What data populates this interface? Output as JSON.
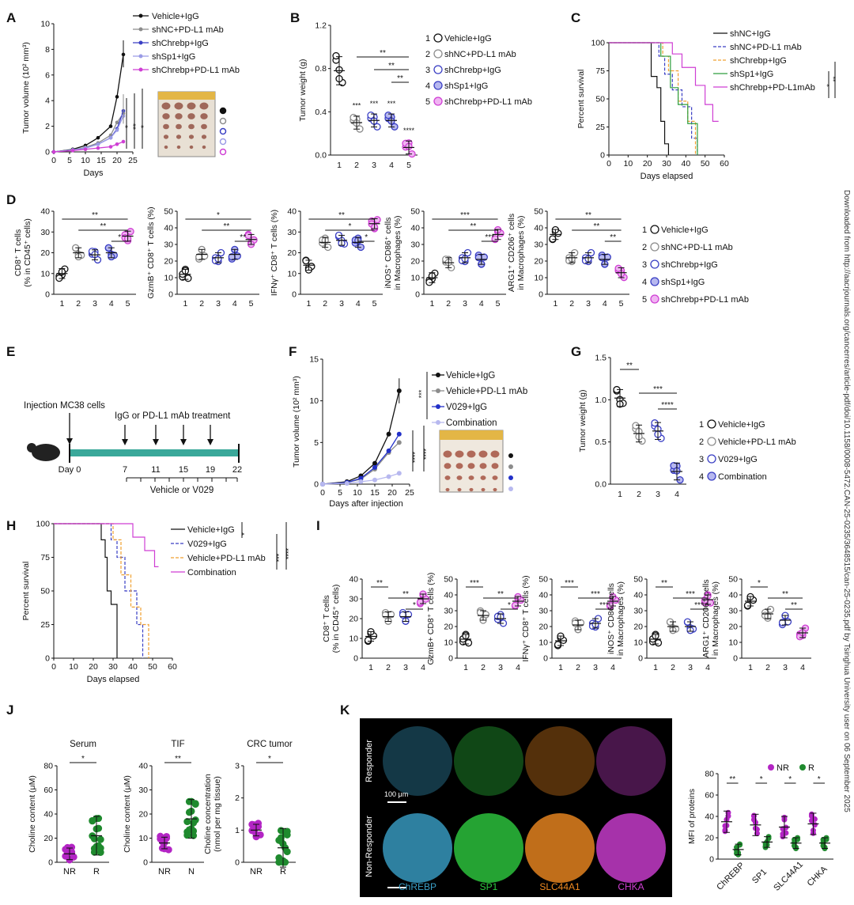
{
  "sidebar_text": "Downloaded from http://aacrjournals.org/cancerres/article-pdf/doi/10.1158/0008-5472.CAN-25-0235/3648515/can-25-0235.pdf by Tsinghua University user on 06 September 2025",
  "labels": {
    "A": "A",
    "B": "B",
    "C": "C",
    "D": "D",
    "E": "E",
    "F": "F",
    "G": "G",
    "H": "H",
    "I": "I",
    "J": "J",
    "K": "K"
  },
  "colors": {
    "black": "#111111",
    "grey": "#8c8c8c",
    "blue": "#3a3fc4",
    "lightblue": "#9a9be6",
    "magenta": "#cf3fd4",
    "orange": "#f0a030",
    "green": "#2e9e3e",
    "teal": "#3aa89a",
    "nr": "#b325c4",
    "r": "#1f8a2e"
  },
  "chart_data": [
    {
      "id": "A",
      "type": "line",
      "xlabel": "Days",
      "ylabel": "Tumor volume (10² mm³)",
      "xticks": [
        0,
        5,
        10,
        15,
        20,
        25
      ],
      "yticks": [
        0,
        2,
        4,
        6,
        8,
        10
      ],
      "ylim": [
        0,
        10
      ],
      "legend": [
        "Vehicle+IgG",
        "shNC+PD-L1 mAb",
        "shChrebp+IgG",
        "shSp1+IgG",
        "shChrebp+PD-L1 mAb"
      ],
      "x": [
        0,
        6,
        10,
        14,
        18,
        20,
        22
      ],
      "series": [
        {
          "name": "Vehicle+IgG",
          "values": [
            0,
            0.2,
            0.5,
            1.1,
            2.0,
            4.3,
            7.6
          ]
        },
        {
          "name": "shNC+PD-L1 mAb",
          "values": [
            0,
            0.15,
            0.35,
            0.7,
            1.3,
            2.3,
            3.0
          ]
        },
        {
          "name": "shChrebp+IgG",
          "values": [
            0,
            0.15,
            0.3,
            0.6,
            1.1,
            1.8,
            3.2
          ]
        },
        {
          "name": "shSp1+IgG",
          "values": [
            0,
            0.15,
            0.3,
            0.6,
            1.1,
            1.7,
            2.8
          ]
        },
        {
          "name": "shChrebp+PD-L1 mAb",
          "values": [
            0,
            0.1,
            0.2,
            0.3,
            0.4,
            0.6,
            0.8
          ]
        }
      ],
      "sig": [
        "*",
        "**",
        "*"
      ]
    },
    {
      "id": "B",
      "type": "scatter",
      "ylabel": "Tumor weight (g)",
      "categories": [
        "1",
        "2",
        "3",
        "4",
        "5"
      ],
      "yticks": [
        0.0,
        0.4,
        0.8,
        1.2
      ],
      "ylim": [
        0,
        1.2
      ],
      "means": [
        0.78,
        0.3,
        0.32,
        0.32,
        0.07
      ],
      "legend": [
        "Vehicle+IgG",
        "shNC+PD-L1 mAb",
        "shChrebp+IgG",
        "shSp1+IgG",
        "shChrebp+PD-L1 mAb"
      ],
      "stars": [
        "",
        "***",
        "***",
        "***",
        "****"
      ],
      "brackets": [
        "**",
        "**",
        "**"
      ]
    },
    {
      "id": "C",
      "type": "line",
      "xlabel": "Days elapsed",
      "ylabel": "Percent survival",
      "xticks": [
        0,
        10,
        20,
        30,
        40,
        50,
        60
      ],
      "yticks": [
        0,
        25,
        50,
        75,
        100
      ],
      "legend": [
        "shNC+IgG",
        "shNC+PD-L1 mAb",
        "shChrebp+IgG",
        "shSp1+IgG",
        "shChrebp+PD-L1mAb"
      ],
      "sig": [
        "*",
        "**",
        "*"
      ]
    },
    {
      "id": "D",
      "type": "scatter",
      "categories": [
        "1",
        "2",
        "3",
        "4",
        "5"
      ],
      "plots": [
        {
          "ylabel": "CD8⁺ T cells (% in CD45⁺ cells)",
          "yticks": [
            0,
            10,
            20,
            30,
            40
          ],
          "ylim": [
            0,
            40
          ],
          "means": [
            10,
            20,
            19,
            20,
            28
          ],
          "brackets": [
            "**",
            "**",
            "*"
          ]
        },
        {
          "ylabel": "GzmB⁺ CD8⁺ T cells (%)",
          "yticks": [
            0,
            10,
            20,
            30,
            40,
            50
          ],
          "ylim": [
            0,
            50
          ],
          "means": [
            12,
            24,
            22,
            24,
            33
          ],
          "brackets": [
            "*",
            "**",
            "**"
          ]
        },
        {
          "ylabel": "IFNγ⁺ CD8⁺ T cells (%)",
          "yticks": [
            0,
            10,
            20,
            30,
            40
          ],
          "ylim": [
            0,
            40
          ],
          "means": [
            14,
            25,
            26,
            25,
            34
          ],
          "brackets": [
            "**",
            "*",
            "*"
          ]
        },
        {
          "ylabel": "iNOS⁺ CD86⁺ cells in Macrophages (%)",
          "yticks": [
            0,
            10,
            20,
            30,
            40,
            50
          ],
          "ylim": [
            0,
            50
          ],
          "means": [
            10,
            19,
            22,
            21,
            36
          ],
          "brackets": [
            "***",
            "**",
            "***"
          ]
        },
        {
          "ylabel": "ARG1⁺ CD206⁺ cells in Macrophages (%)",
          "yticks": [
            0,
            10,
            20,
            30,
            40,
            50
          ],
          "ylim": [
            0,
            50
          ],
          "means": [
            36,
            22,
            22,
            21,
            13
          ],
          "brackets": [
            "**",
            "**",
            "**"
          ]
        }
      ],
      "legend": [
        "Vehicle+IgG",
        "shNC+PD-L1 mAb",
        "shChrebp+IgG",
        "shSp1+IgG",
        "shChrebp+PD-L1 mAb"
      ]
    },
    {
      "id": "F",
      "type": "line",
      "xlabel": "Days after injection",
      "ylabel": "Tumor volume (10² mm³)",
      "xticks": [
        0,
        5,
        10,
        15,
        20,
        25
      ],
      "yticks": [
        0,
        5,
        10,
        15
      ],
      "ylim": [
        0,
        15
      ],
      "x": [
        0,
        7,
        11,
        15,
        19,
        22
      ],
      "legend": [
        "Vehicle+IgG",
        "Vehicle+PD-L1 mAb",
        "V029+IgG",
        "Combination"
      ],
      "series": [
        {
          "name": "Vehicle+IgG",
          "values": [
            0,
            0.3,
            1.0,
            2.5,
            6.0,
            11.2
          ]
        },
        {
          "name": "Vehicle+PD-L1 mAb",
          "values": [
            0,
            0.2,
            0.6,
            1.8,
            3.8,
            5.0
          ]
        },
        {
          "name": "V029+IgG",
          "values": [
            0,
            0.2,
            0.7,
            2.0,
            4.0,
            6.0
          ]
        },
        {
          "name": "Combination",
          "values": [
            0,
            0.1,
            0.3,
            0.5,
            0.9,
            1.3
          ]
        }
      ],
      "sig": [
        "***",
        "****",
        "****"
      ]
    },
    {
      "id": "G",
      "type": "scatter",
      "ylabel": "Tumor weight (g)",
      "categories": [
        "1",
        "2",
        "3",
        "4"
      ],
      "yticks": [
        0.0,
        0.5,
        1.0,
        1.5
      ],
      "ylim": [
        0,
        1.5
      ],
      "means": [
        1.02,
        0.6,
        0.63,
        0.15
      ],
      "brackets": [
        "**",
        "***",
        "****"
      ],
      "legend": [
        "Vehicle+IgG",
        "Vehicle+PD-L1 mAb",
        "V029+IgG",
        "Combination"
      ]
    },
    {
      "id": "H",
      "type": "line",
      "xlabel": "Days elapsed",
      "ylabel": "Percent survival",
      "xticks": [
        0,
        10,
        20,
        30,
        40,
        50,
        60
      ],
      "yticks": [
        0,
        25,
        50,
        75,
        100
      ],
      "legend": [
        "Vehicle+IgG",
        "V029+IgG",
        "Vehicle+PD-L1 mAb",
        "Combination"
      ],
      "sig": [
        "*",
        "***",
        "****"
      ]
    },
    {
      "id": "I",
      "type": "scatter",
      "categories": [
        "1",
        "2",
        "3",
        "4"
      ],
      "plots": [
        {
          "ylabel": "CD8⁺ T cells (% in CD45⁺ cells)",
          "yticks": [
            0,
            10,
            20,
            30,
            40
          ],
          "ylim": [
            0,
            40
          ],
          "means": [
            11,
            21,
            21,
            30
          ],
          "brackets": [
            "**",
            "**",
            "*"
          ]
        },
        {
          "ylabel": "GzmB+ CD8⁺ T cells (%)",
          "yticks": [
            0,
            10,
            20,
            30,
            40,
            50
          ],
          "ylim": [
            0,
            50
          ],
          "means": [
            12,
            27,
            25,
            36
          ],
          "brackets": [
            "***",
            "**",
            "*"
          ]
        },
        {
          "ylabel": "IFNγ⁺ CD8⁺ T cells (%)",
          "yticks": [
            0,
            10,
            20,
            30,
            40,
            50
          ],
          "ylim": [
            0,
            50
          ],
          "means": [
            11,
            21,
            22,
            36
          ],
          "brackets": [
            "***",
            "***",
            "***"
          ]
        },
        {
          "ylabel": "iNOS⁺ CD86⁺ cells in Macrophages (%)",
          "yticks": [
            0,
            10,
            20,
            30,
            40,
            50
          ],
          "ylim": [
            0,
            50
          ],
          "means": [
            12,
            20,
            20,
            37
          ],
          "brackets": [
            "**",
            "***",
            "***"
          ]
        },
        {
          "ylabel": "ARG1⁺ CD206⁺ cells in Macrophages (%)",
          "yticks": [
            0,
            10,
            20,
            30,
            40,
            50
          ],
          "ylim": [
            0,
            50
          ],
          "means": [
            36,
            28,
            24,
            16
          ],
          "brackets": [
            "*",
            "**",
            "**"
          ]
        }
      ]
    },
    {
      "id": "J",
      "type": "scatter",
      "plots": [
        {
          "title": "Serum",
          "ylabel": "Choline content (μM)",
          "categories": [
            "NR",
            "R"
          ],
          "yticks": [
            0,
            20,
            40,
            60,
            80
          ],
          "ylim": [
            0,
            80
          ],
          "means": [
            7,
            22
          ],
          "brackets": [
            "*"
          ]
        },
        {
          "title": "TIF",
          "ylabel": "Choline content (μM)",
          "categories": [
            "NR",
            "N"
          ],
          "yticks": [
            0,
            10,
            20,
            30,
            40
          ],
          "ylim": [
            0,
            40
          ],
          "means": [
            8,
            18
          ],
          "brackets": [
            "**"
          ]
        },
        {
          "title": "CRC tumor",
          "ylabel": "Choline concentration (nmol per mg tissue)",
          "categories": [
            "NR",
            "R"
          ],
          "yticks": [
            0,
            1,
            2,
            3
          ],
          "ylim": [
            0,
            3
          ],
          "means": [
            1.0,
            0.45
          ],
          "brackets": [
            "*"
          ]
        }
      ]
    },
    {
      "id": "K",
      "type": "scatter",
      "ylabel": "MFI of proteins",
      "categories": [
        "ChREBP",
        "SP1",
        "SLC44A1",
        "CHKA"
      ],
      "yticks": [
        0,
        20,
        40,
        60,
        80
      ],
      "ylim": [
        0,
        80
      ],
      "series": [
        {
          "name": "NR",
          "values": [
            35,
            32,
            30,
            33
          ]
        },
        {
          "name": "R",
          "values": [
            9,
            16,
            15,
            15
          ]
        }
      ],
      "brackets": [
        "**",
        "*",
        "*",
        "*"
      ],
      "rows": [
        "Responder",
        "Non-Responder"
      ],
      "channels": [
        "ChREBP",
        "SP1",
        "SLC44A1",
        "CHKA"
      ],
      "scalebar": "100 μm"
    }
  ],
  "schematic": {
    "injection": "Injection MC38 cells",
    "treatment": "IgG or PD-L1 mAb treatment",
    "day0": "Day 0",
    "days": [
      "7",
      "11",
      "15",
      "19",
      "22"
    ],
    "vehicle": "Vehicle or V029"
  }
}
